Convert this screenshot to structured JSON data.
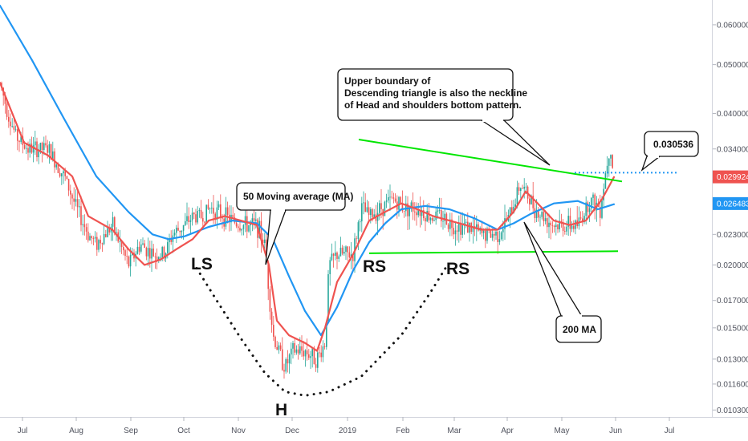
{
  "chart_data": {
    "type": "candlestick",
    "x_axis_labels": [
      "Jul",
      "Aug",
      "Sep",
      "Oct",
      "Nov",
      "Dec",
      "2019",
      "Feb",
      "Mar",
      "Apr",
      "May",
      "Jun",
      "Jul"
    ],
    "y_scale": "log",
    "ylim": [
      0.0102,
      0.0655
    ],
    "y_ticks": [
      "0.060000",
      "0.050000",
      "0.040000",
      "0.034000",
      "0.023000",
      "0.020000",
      "0.017000",
      "0.015000",
      "0.013000",
      "0.011600",
      "0.010300"
    ],
    "y_tick_values": [
      0.06,
      0.05,
      0.04,
      0.034,
      0.023,
      0.02,
      0.017,
      0.015,
      0.013,
      0.0116,
      0.0103
    ],
    "price_badges": [
      {
        "label": "0.029924",
        "value": 0.029924,
        "color": "#ef5350"
      },
      {
        "label": "0.026483",
        "value": 0.026483,
        "color": "#2196f3"
      }
    ],
    "price_anchors": [
      {
        "t": 0,
        "v": 0.046
      },
      {
        "t": 10,
        "v": 0.04
      },
      {
        "t": 20,
        "v": 0.036
      },
      {
        "t": 35,
        "v": 0.034
      },
      {
        "t": 60,
        "v": 0.034
      },
      {
        "t": 80,
        "v": 0.03
      },
      {
        "t": 95,
        "v": 0.026
      },
      {
        "t": 110,
        "v": 0.023
      },
      {
        "t": 120,
        "v": 0.022
      },
      {
        "t": 140,
        "v": 0.024
      },
      {
        "t": 160,
        "v": 0.02
      },
      {
        "t": 175,
        "v": 0.022
      },
      {
        "t": 190,
        "v": 0.021
      },
      {
        "t": 205,
        "v": 0.021
      },
      {
        "t": 215,
        "v": 0.023
      },
      {
        "t": 230,
        "v": 0.024
      },
      {
        "t": 240,
        "v": 0.025
      },
      {
        "t": 252,
        "v": 0.025
      },
      {
        "t": 262,
        "v": 0.026
      },
      {
        "t": 280,
        "v": 0.025
      },
      {
        "t": 300,
        "v": 0.024
      },
      {
        "t": 320,
        "v": 0.024
      },
      {
        "t": 330,
        "v": 0.022
      },
      {
        "t": 340,
        "v": 0.0145
      },
      {
        "t": 355,
        "v": 0.0125
      },
      {
        "t": 365,
        "v": 0.0135
      },
      {
        "t": 380,
        "v": 0.0135
      },
      {
        "t": 395,
        "v": 0.013
      },
      {
        "t": 405,
        "v": 0.014
      },
      {
        "t": 410,
        "v": 0.02
      },
      {
        "t": 420,
        "v": 0.021
      },
      {
        "t": 440,
        "v": 0.021
      },
      {
        "t": 450,
        "v": 0.026
      },
      {
        "t": 460,
        "v": 0.025
      },
      {
        "t": 475,
        "v": 0.026
      },
      {
        "t": 490,
        "v": 0.027
      },
      {
        "t": 505,
        "v": 0.026
      },
      {
        "t": 520,
        "v": 0.026
      },
      {
        "t": 535,
        "v": 0.025
      },
      {
        "t": 550,
        "v": 0.025
      },
      {
        "t": 565,
        "v": 0.024
      },
      {
        "t": 580,
        "v": 0.024
      },
      {
        "t": 600,
        "v": 0.023
      },
      {
        "t": 620,
        "v": 0.023
      },
      {
        "t": 635,
        "v": 0.025
      },
      {
        "t": 648,
        "v": 0.029
      },
      {
        "t": 660,
        "v": 0.027
      },
      {
        "t": 670,
        "v": 0.0255
      },
      {
        "t": 690,
        "v": 0.024
      },
      {
        "t": 705,
        "v": 0.024
      },
      {
        "t": 720,
        "v": 0.024
      },
      {
        "t": 735,
        "v": 0.027
      },
      {
        "t": 748,
        "v": 0.026
      },
      {
        "t": 760,
        "v": 0.035
      },
      {
        "t": 765,
        "v": 0.03
      }
    ],
    "ma50": [
      {
        "t": 0,
        "v": 0.046
      },
      {
        "t": 30,
        "v": 0.035
      },
      {
        "t": 60,
        "v": 0.033
      },
      {
        "t": 90,
        "v": 0.03
      },
      {
        "t": 110,
        "v": 0.025
      },
      {
        "t": 140,
        "v": 0.0235
      },
      {
        "t": 160,
        "v": 0.0215
      },
      {
        "t": 180,
        "v": 0.02
      },
      {
        "t": 200,
        "v": 0.0205
      },
      {
        "t": 220,
        "v": 0.0215
      },
      {
        "t": 240,
        "v": 0.0225
      },
      {
        "t": 260,
        "v": 0.0245
      },
      {
        "t": 280,
        "v": 0.025
      },
      {
        "t": 300,
        "v": 0.0245
      },
      {
        "t": 320,
        "v": 0.024
      },
      {
        "t": 335,
        "v": 0.02
      },
      {
        "t": 345,
        "v": 0.0155
      },
      {
        "t": 360,
        "v": 0.0145
      },
      {
        "t": 380,
        "v": 0.014
      },
      {
        "t": 395,
        "v": 0.0135
      },
      {
        "t": 405,
        "v": 0.015
      },
      {
        "t": 420,
        "v": 0.0185
      },
      {
        "t": 440,
        "v": 0.021
      },
      {
        "t": 460,
        "v": 0.0245
      },
      {
        "t": 480,
        "v": 0.0255
      },
      {
        "t": 500,
        "v": 0.0265
      },
      {
        "t": 520,
        "v": 0.0258
      },
      {
        "t": 540,
        "v": 0.025
      },
      {
        "t": 560,
        "v": 0.0245
      },
      {
        "t": 580,
        "v": 0.024
      },
      {
        "t": 600,
        "v": 0.0235
      },
      {
        "t": 620,
        "v": 0.0235
      },
      {
        "t": 640,
        "v": 0.0255
      },
      {
        "t": 655,
        "v": 0.028
      },
      {
        "t": 670,
        "v": 0.0265
      },
      {
        "t": 690,
        "v": 0.0245
      },
      {
        "t": 710,
        "v": 0.024
      },
      {
        "t": 730,
        "v": 0.0245
      },
      {
        "t": 750,
        "v": 0.027
      },
      {
        "t": 765,
        "v": 0.0299
      }
    ],
    "ma200": [
      {
        "t": 0,
        "v": 0.0655
      },
      {
        "t": 40,
        "v": 0.051
      },
      {
        "t": 80,
        "v": 0.039
      },
      {
        "t": 120,
        "v": 0.03
      },
      {
        "t": 160,
        "v": 0.0255
      },
      {
        "t": 190,
        "v": 0.023
      },
      {
        "t": 210,
        "v": 0.0225
      },
      {
        "t": 230,
        "v": 0.0228
      },
      {
        "t": 260,
        "v": 0.0238
      },
      {
        "t": 290,
        "v": 0.0245
      },
      {
        "t": 320,
        "v": 0.0242
      },
      {
        "t": 340,
        "v": 0.0225
      },
      {
        "t": 360,
        "v": 0.019
      },
      {
        "t": 380,
        "v": 0.0162
      },
      {
        "t": 400,
        "v": 0.0145
      },
      {
        "t": 420,
        "v": 0.0165
      },
      {
        "t": 440,
        "v": 0.0195
      },
      {
        "t": 460,
        "v": 0.0222
      },
      {
        "t": 480,
        "v": 0.0242
      },
      {
        "t": 500,
        "v": 0.0258
      },
      {
        "t": 530,
        "v": 0.0262
      },
      {
        "t": 560,
        "v": 0.0258
      },
      {
        "t": 590,
        "v": 0.0248
      },
      {
        "t": 620,
        "v": 0.0235
      },
      {
        "t": 640,
        "v": 0.0242
      },
      {
        "t": 660,
        "v": 0.0252
      },
      {
        "t": 690,
        "v": 0.0265
      },
      {
        "t": 720,
        "v": 0.0268
      },
      {
        "t": 745,
        "v": 0.0258
      },
      {
        "t": 765,
        "v": 0.0264
      }
    ],
    "trendlines": [
      {
        "name": "upper-boundary",
        "t1": 447,
        "v1": 0.0355,
        "t2": 775,
        "v2": 0.0293,
        "color": "#00e600"
      },
      {
        "name": "lower-boundary",
        "t1": 460,
        "v1": 0.0211,
        "t2": 770,
        "v2": 0.0213,
        "color": "#00e600"
      }
    ],
    "dotted_level": {
      "value": 0.0305,
      "t1": 716,
      "t2": 844,
      "color": "#2196f3"
    },
    "neckline_arc": [
      {
        "t": 245,
        "v": 0.0197
      },
      {
        "t": 270,
        "v": 0.017
      },
      {
        "t": 300,
        "v": 0.0143
      },
      {
        "t": 330,
        "v": 0.0122
      },
      {
        "t": 355,
        "v": 0.0112
      },
      {
        "t": 380,
        "v": 0.011
      },
      {
        "t": 410,
        "v": 0.0112
      },
      {
        "t": 450,
        "v": 0.012
      },
      {
        "t": 500,
        "v": 0.0145
      },
      {
        "t": 535,
        "v": 0.0175
      },
      {
        "t": 555,
        "v": 0.0197
      }
    ]
  },
  "annotations": {
    "ls": "LS",
    "h": "H",
    "rs1": "RS",
    "rs2": "RS",
    "note_ma50": "50 Moving average (MA)",
    "note_triangle_lines": [
      "Upper boundary of",
      "Descending triangle is also the neckline",
      "of Head and shoulders bottom pattern."
    ],
    "note_price": "0.030536",
    "note_ma200": "200 MA"
  },
  "colors": {
    "up": "#26a69a",
    "down": "#ef5350",
    "ma50": "#ef5350",
    "ma200": "#2196f3",
    "trend": "#00e600",
    "axis": "#50535e"
  }
}
